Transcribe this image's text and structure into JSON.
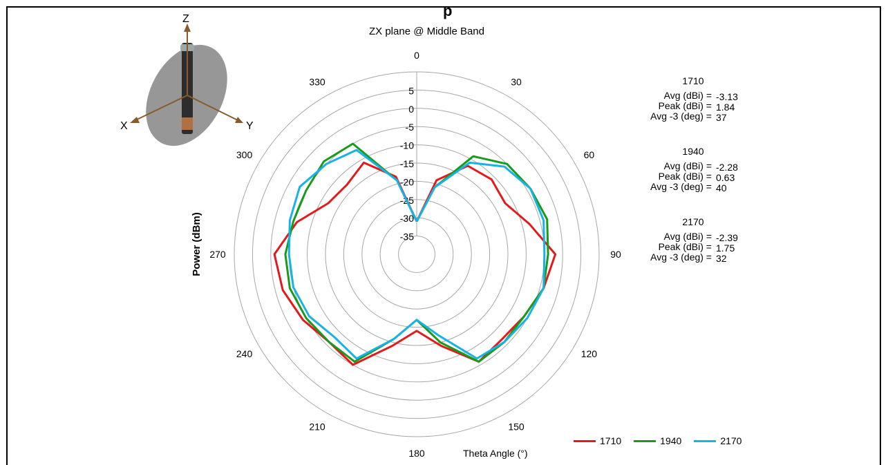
{
  "chart_data": {
    "type": "polar-line",
    "title": "ZX plane @ Middle Band",
    "radial_axis_label": "Power (dBm)",
    "angular_axis_label": "Theta Angle (°)",
    "radial_ticks": [
      "5",
      "0",
      "-5",
      "-10",
      "-15",
      "-20",
      "-25",
      "-30",
      "-35"
    ],
    "radial_range": [
      -40,
      10
    ],
    "angle_ticks": [
      "0",
      "30",
      "60",
      "90",
      "120",
      "150",
      "180",
      "210",
      "240",
      "270",
      "300",
      "330"
    ],
    "angles": [
      0,
      15,
      30,
      45,
      60,
      75,
      90,
      105,
      120,
      135,
      150,
      165,
      180,
      195,
      210,
      225,
      240,
      255,
      270,
      285,
      300,
      315,
      330,
      345
    ],
    "series": [
      {
        "name": "1710",
        "color": "#e31a1c",
        "values": [
          -31,
          -19,
          -12,
          -11,
          -12,
          -8,
          -2,
          -4,
          -6,
          -7,
          -6,
          -14,
          -19,
          -14,
          -5,
          -6,
          -4,
          -2,
          -1,
          -6,
          -12,
          -13,
          -11,
          -18
        ]
      },
      {
        "name": "1940",
        "color": "#1a9a1a",
        "values": [
          -31,
          -21,
          -9,
          -5,
          -4,
          -3,
          -4,
          -4,
          -6,
          -6,
          -6,
          -15,
          -22,
          -16,
          -6,
          -6,
          -5,
          -4,
          -4,
          -5,
          -5,
          -4,
          -5,
          -19
        ]
      },
      {
        "name": "2170",
        "color": "#19b2e6",
        "values": [
          -31,
          -21,
          -11,
          -6,
          -4,
          -4,
          -5,
          -4,
          -5,
          -6,
          -7,
          -17,
          -22,
          -16,
          -7,
          -8,
          -6,
          -5,
          -5,
          -4,
          -3,
          -5,
          -7,
          -19
        ]
      }
    ]
  },
  "stats": [
    {
      "band": "1710",
      "avg_label": "Avg (dBi) =",
      "avg": "-3.13",
      "peak_label": "Peak (dBi) =",
      "peak": "1.84",
      "deg_label": "Avg -3 (deg) =",
      "deg": "37"
    },
    {
      "band": "1940",
      "avg_label": "Avg (dBi) =",
      "avg": "-2.28",
      "peak_label": "Peak (dBi) =",
      "peak": "0.63",
      "deg_label": "Avg -3 (deg) =",
      "deg": "40"
    },
    {
      "band": "2170",
      "avg_label": "Avg (dBi) =",
      "avg": "-2.39",
      "peak_label": "Peak (dBi) =",
      "peak": "1.75",
      "deg_label": "Avg -3 (deg) =",
      "deg": "32"
    }
  ],
  "legend": [
    {
      "label": "1710",
      "color": "#e31a1c"
    },
    {
      "label": "1940",
      "color": "#1a9a1a"
    },
    {
      "label": "2170",
      "color": "#19b2e6"
    }
  ],
  "axes_icon": {
    "z": "Z",
    "x": "X",
    "y": "Y"
  }
}
